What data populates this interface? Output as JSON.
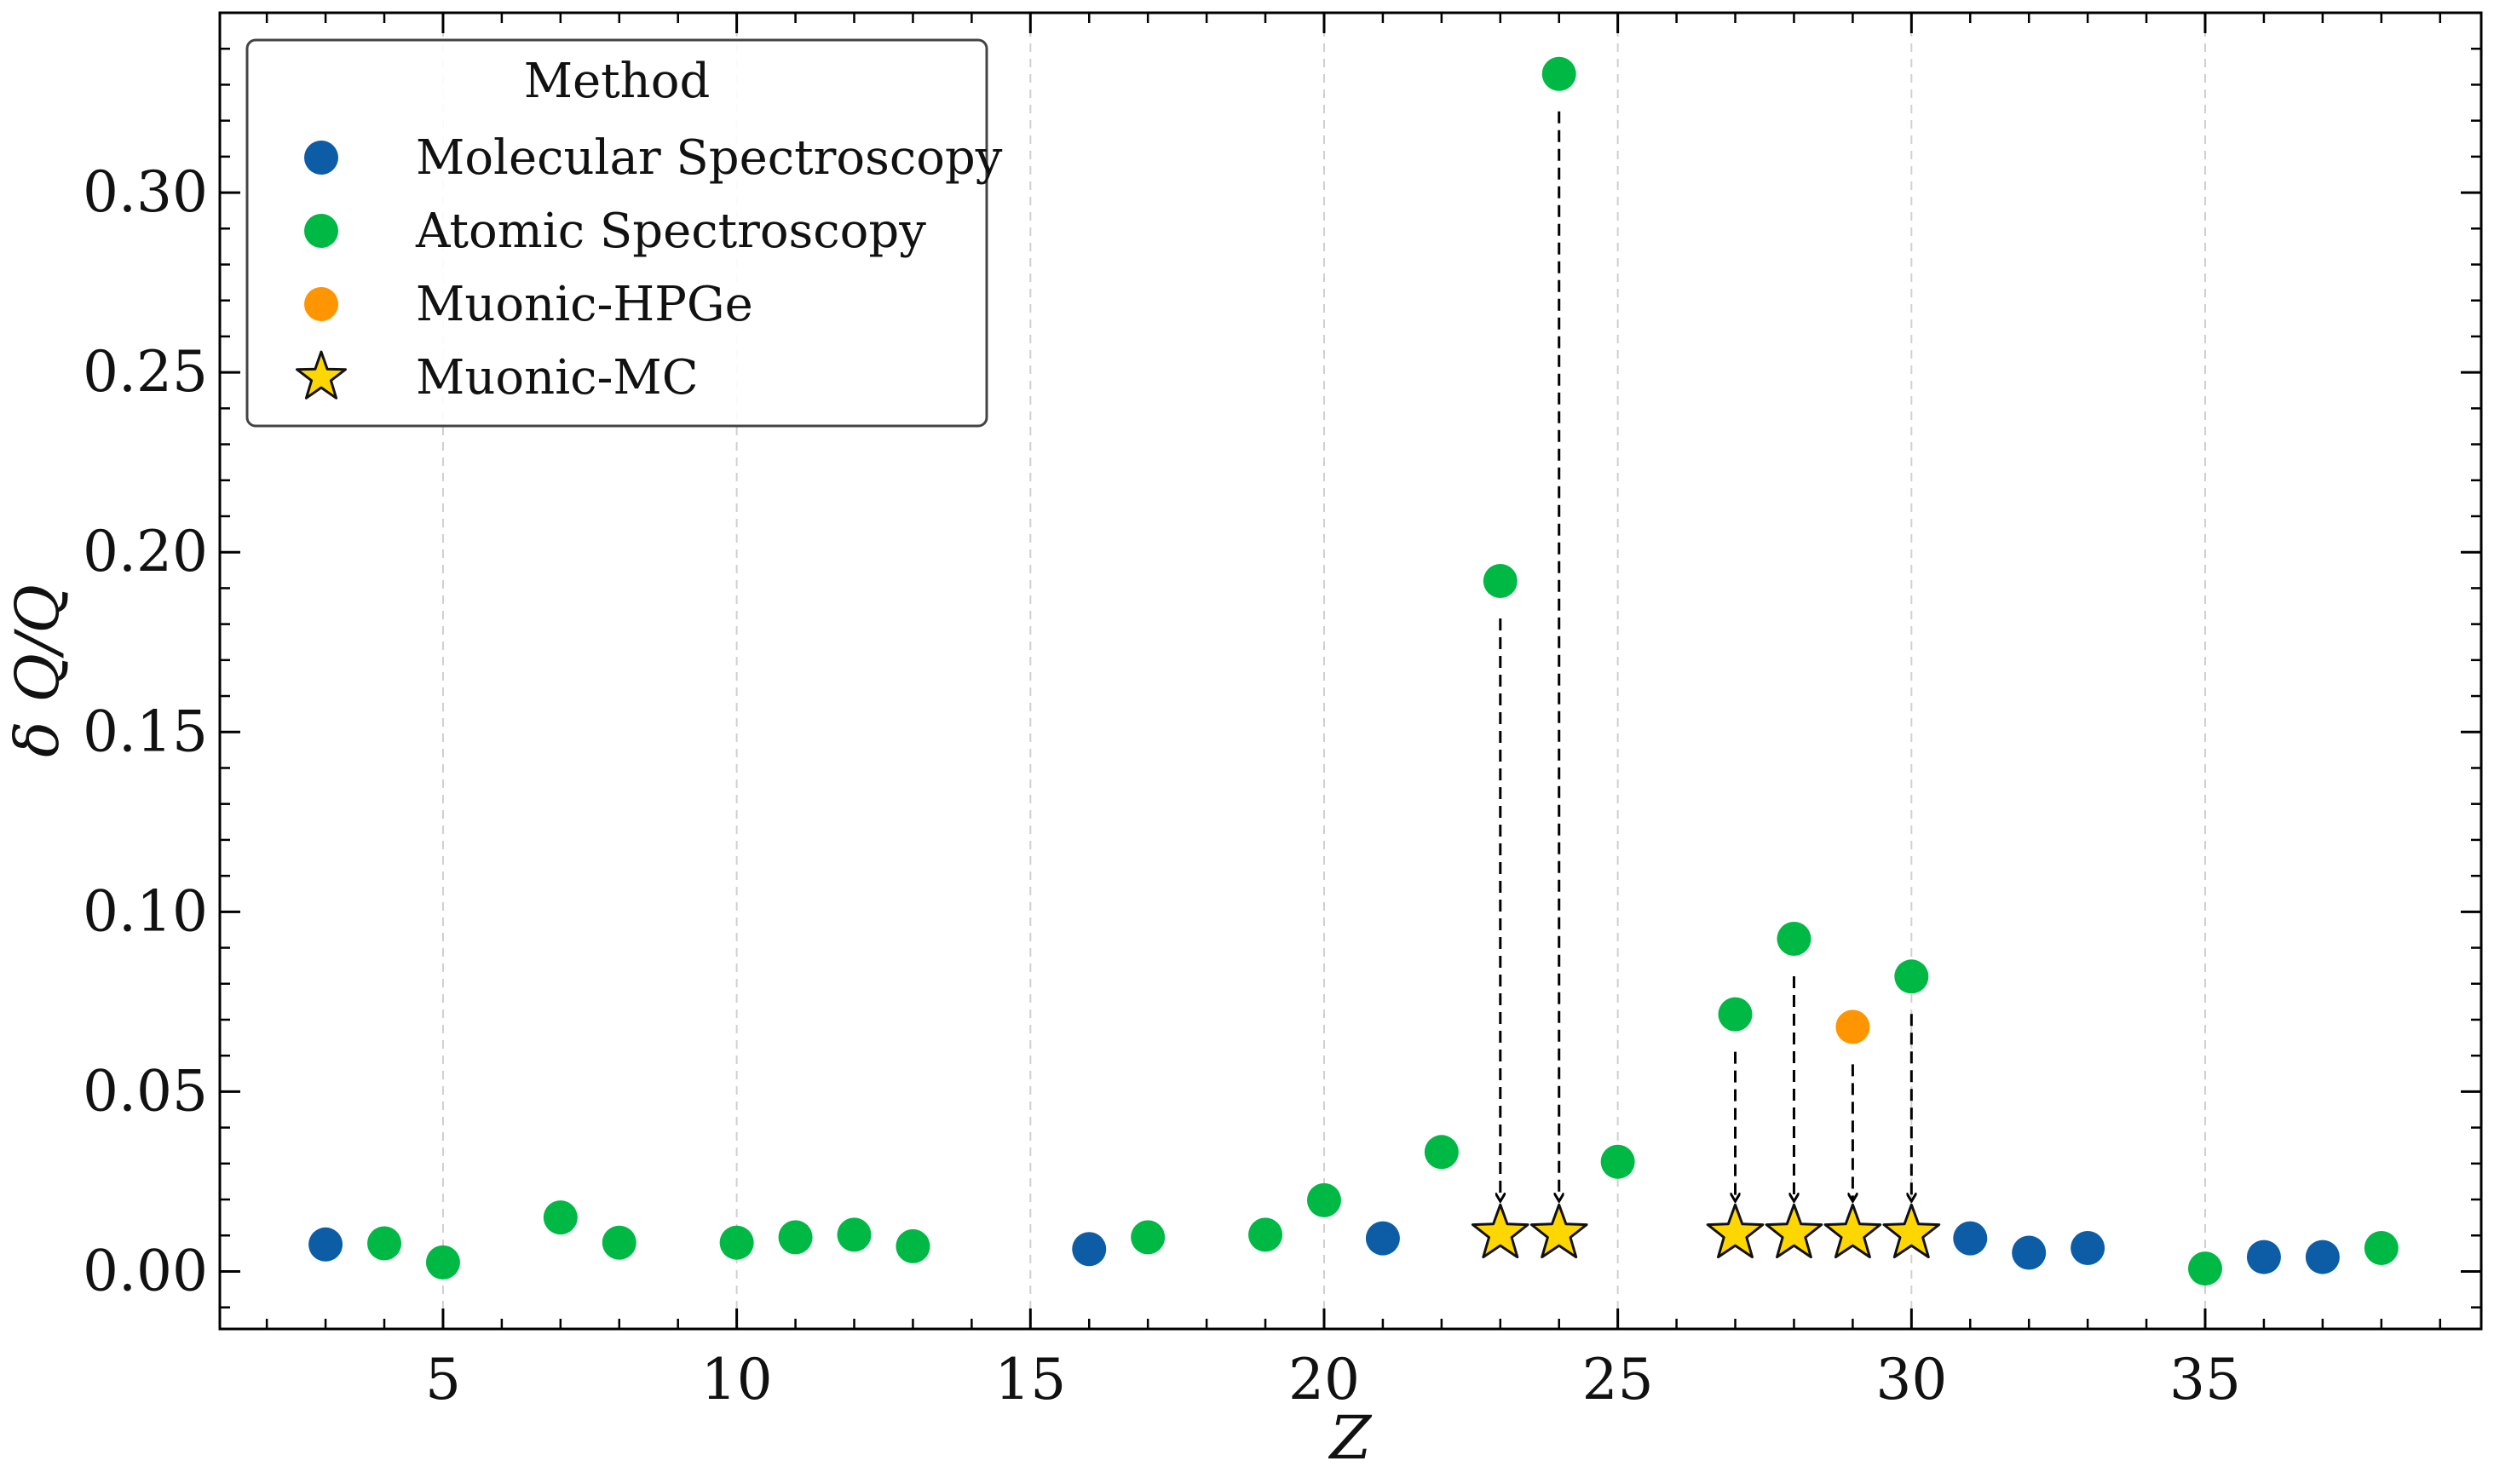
{
  "chart_data": {
    "type": "scatter",
    "title": "",
    "xlabel": "Z",
    "ylabel": "δ Q/Q",
    "xlim": [
      1.2,
      39.7
    ],
    "ylim": [
      -0.016,
      0.35
    ],
    "xticks": [
      5,
      10,
      15,
      20,
      25,
      30,
      35
    ],
    "yticks": [
      0.0,
      0.05,
      0.1,
      0.15,
      0.2,
      0.25,
      0.3
    ],
    "ytick_labels": [
      "0.00",
      "0.05",
      "0.10",
      "0.15",
      "0.20",
      "0.25",
      "0.30"
    ],
    "grid": "vertical dashed at major x ticks",
    "legend": {
      "title": "Method",
      "placement": "top-left",
      "entries": [
        {
          "name": "Molecular Spectroscopy",
          "marker": "circle",
          "color": "#0C5DA5"
        },
        {
          "name": "Atomic Spectroscopy",
          "marker": "circle",
          "color": "#00B945"
        },
        {
          "name": "Muonic-HPGe",
          "marker": "circle",
          "color": "#FF9500"
        },
        {
          "name": "Muonic-MC",
          "marker": "star",
          "color": "#FFD700"
        }
      ]
    },
    "series": [
      {
        "name": "Molecular Spectroscopy",
        "marker": "circle",
        "color": "#0C5DA5",
        "points": [
          [
            3,
            0.0075
          ],
          [
            16,
            0.0062
          ],
          [
            21,
            0.0092
          ],
          [
            31,
            0.0092
          ],
          [
            32,
            0.0052
          ],
          [
            33,
            0.0065
          ],
          [
            36,
            0.004
          ],
          [
            37,
            0.004
          ]
        ]
      },
      {
        "name": "Atomic Spectroscopy",
        "marker": "circle",
        "color": "#00B945",
        "points": [
          [
            4,
            0.0078
          ],
          [
            5,
            0.0025
          ],
          [
            7,
            0.015
          ],
          [
            8,
            0.008
          ],
          [
            10,
            0.008
          ],
          [
            11,
            0.0095
          ],
          [
            12,
            0.0102
          ],
          [
            13,
            0.007
          ],
          [
            17,
            0.0095
          ],
          [
            19,
            0.0102
          ],
          [
            20,
            0.0198
          ],
          [
            22,
            0.0332
          ],
          [
            23,
            0.192
          ],
          [
            24,
            0.333
          ],
          [
            25,
            0.0305
          ],
          [
            27,
            0.0715
          ],
          [
            28,
            0.0925
          ],
          [
            30,
            0.082
          ],
          [
            35,
            0.0008
          ],
          [
            38,
            0.0065
          ]
        ]
      },
      {
        "name": "Muonic-HPGe",
        "marker": "circle",
        "color": "#FF9500",
        "points": [
          [
            29,
            0.068
          ]
        ]
      },
      {
        "name": "Muonic-MC",
        "marker": "star",
        "color": "#FFD700",
        "points": [
          [
            23,
            0.0105
          ],
          [
            24,
            0.0105
          ],
          [
            27,
            0.0105
          ],
          [
            28,
            0.0105
          ],
          [
            29,
            0.0105
          ],
          [
            30,
            0.0105
          ]
        ]
      }
    ],
    "annotations": [
      {
        "type": "dashed-arrow",
        "x": 23,
        "from": 0.192,
        "to": 0.0105
      },
      {
        "type": "dashed-arrow",
        "x": 24,
        "from": 0.333,
        "to": 0.0105
      },
      {
        "type": "dashed-arrow",
        "x": 27,
        "from": 0.0715,
        "to": 0.0105
      },
      {
        "type": "dashed-arrow",
        "x": 28,
        "from": 0.0925,
        "to": 0.0105
      },
      {
        "type": "dashed-arrow",
        "x": 29,
        "from": 0.068,
        "to": 0.0105
      },
      {
        "type": "dashed-arrow",
        "x": 30,
        "from": 0.082,
        "to": 0.0105
      }
    ]
  }
}
